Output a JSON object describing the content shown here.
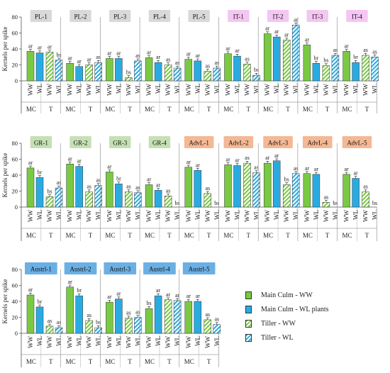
{
  "colors": {
    "main_ww": "#7ac943",
    "main_wl": "#29abe2",
    "tiller_ww_stripe": "#7ac943",
    "tiller_wl_stripe": "#29abe2",
    "group_pl": "#d9d9d9",
    "group_it": "#f4c6f2",
    "group_gr": "#c5e0b4",
    "group_advl": "#f4b894",
    "group_austrl": "#6ab0e4"
  },
  "chart_data": {
    "type": "bar",
    "ylabel": "Kernels per spike",
    "ylim": [
      0,
      80
    ],
    "yticks": [
      0,
      20,
      40,
      60,
      80
    ],
    "bar_labels": [
      "WW",
      "WL",
      "WW",
      "WL"
    ],
    "group_labels": [
      "MC",
      "T"
    ],
    "series": [
      {
        "name": "Main Culm - WW"
      },
      {
        "name": "Main Culm - WL plants"
      },
      {
        "name": "Tiller - WW"
      },
      {
        "name": "Tiller - WL"
      }
    ],
    "rows": [
      {
        "panels": [
          {
            "name": "PL-1",
            "values": [
              37,
              35,
              36,
              26
            ],
            "letters": [
              "ar",
              "ar",
              "ar",
              "bs"
            ]
          },
          {
            "name": "PL-2",
            "values": [
              22,
              18,
              20,
              23
            ],
            "letters": [
              "ar",
              "ar",
              "ar",
              "as"
            ]
          },
          {
            "name": "PL-3",
            "values": [
              28,
              28,
              4,
              25
            ],
            "letters": [
              "ar",
              "ar",
              "bs",
              "as"
            ]
          },
          {
            "name": "PL-4",
            "values": [
              29,
              23,
              20,
              16
            ],
            "letters": [
              "ar",
              "ar",
              "as",
              "as"
            ]
          },
          {
            "name": "PL-5",
            "values": [
              27,
              25,
              12,
              16
            ],
            "letters": [
              "ar",
              "ar",
              "as",
              "as"
            ]
          },
          {
            "name": "IT-1",
            "values": [
              34,
              31,
              21,
              7
            ],
            "letters": [
              "ar",
              "ar",
              "as",
              "bs"
            ]
          },
          {
            "name": "IT-2",
            "values": [
              59,
              55,
              51,
              70
            ],
            "letters": [
              "ar",
              "ar",
              "ar",
              "ar"
            ]
          },
          {
            "name": "IT-3",
            "values": [
              45,
              22,
              19,
              32
            ],
            "letters": [
              "ar",
              "br",
              "bs",
              "as"
            ]
          },
          {
            "name": "IT-4",
            "values": [
              37,
              23,
              32,
              30
            ],
            "letters": [
              "ar",
              "br",
              "as",
              "as"
            ]
          }
        ]
      },
      {
        "panels": [
          {
            "name": "GR-1",
            "values": [
              49,
              37,
              13,
              24
            ],
            "letters": [
              "ar",
              "br",
              "bs",
              "as"
            ]
          },
          {
            "name": "GR-2",
            "values": [
              54,
              51,
              19,
              27
            ],
            "letters": [
              "ar",
              "ar",
              "as",
              "as"
            ]
          },
          {
            "name": "GR-3",
            "values": [
              44,
              29,
              19,
              18
            ],
            "letters": [
              "ar",
              "br",
              "as",
              "as"
            ]
          },
          {
            "name": "GR-4",
            "values": [
              28,
              21,
              14,
              0
            ],
            "letters": [
              "ar",
              "ar",
              "as",
              "bs"
            ]
          },
          {
            "name": "AdvL-1",
            "values": [
              50,
              46,
              17,
              0
            ],
            "letters": [
              "ar",
              "ar",
              "as",
              "bs"
            ]
          },
          {
            "name": "AdvL-2",
            "values": [
              53,
              52,
              55,
              43
            ],
            "letters": [
              "ar",
              "ar",
              "as",
              "as"
            ]
          },
          {
            "name": "AdvL-3",
            "values": [
              55,
              58,
              28,
              42
            ],
            "letters": [
              "ar",
              "ar",
              "bs",
              "as"
            ]
          },
          {
            "name": "AdvL-4",
            "values": [
              42,
              41,
              6,
              0
            ],
            "letters": [
              "ar",
              "ar",
              "as",
              "bs"
            ]
          },
          {
            "name": "AdvL-5",
            "values": [
              41,
              36,
              19,
              0
            ],
            "letters": [
              "ar",
              "ar",
              "as",
              "bs"
            ]
          }
        ]
      },
      {
        "panels": [
          {
            "name": "Austrl-1",
            "values": [
              48,
              33,
              9,
              7
            ],
            "letters": [
              "ar",
              "br",
              "as",
              "as"
            ]
          },
          {
            "name": "Austrl-2",
            "values": [
              58,
              47,
              16,
              7
            ],
            "letters": [
              "ar",
              "br",
              "as",
              "bs"
            ]
          },
          {
            "name": "Austrl-3",
            "values": [
              39,
              43,
              19,
              20
            ],
            "letters": [
              "ar",
              "ar",
              "as",
              "as"
            ]
          },
          {
            "name": "Austrl-4",
            "values": [
              31,
              47,
              42,
              41
            ],
            "letters": [
              "bs",
              "ar",
              "ar",
              "ar"
            ]
          },
          {
            "name": "Austrl-5",
            "values": [
              40,
              40,
              17,
              11
            ],
            "letters": [
              "ar",
              "ar",
              "as",
              "as"
            ]
          }
        ]
      }
    ]
  }
}
